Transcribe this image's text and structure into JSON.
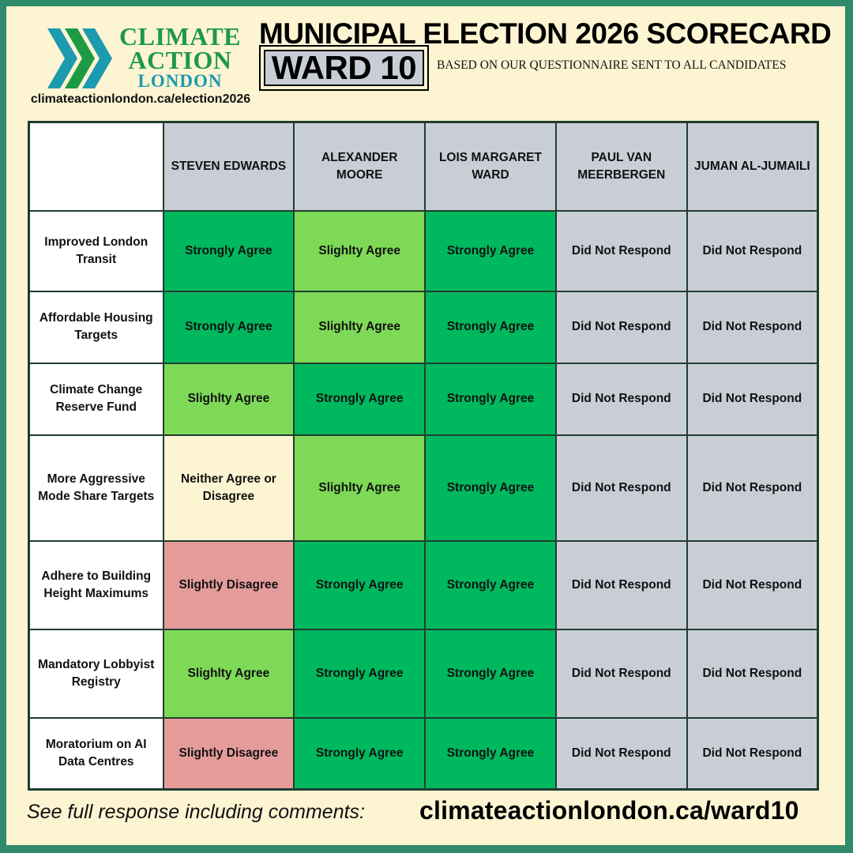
{
  "logo": {
    "line1": "CLIMATE",
    "line2": "ACTION",
    "line3": "LONDON",
    "icon": "chevrons-right-icon",
    "colors": {
      "green": "#1e9a47",
      "teal": "#1c9ab0"
    }
  },
  "header": {
    "website": "climateactionlondon.ca/election2026",
    "title": "MUNICIPAL ELECTION 2026 SCORECARD",
    "ward": "WARD 10",
    "subtitle": "BASED ON OUR QUESTIONNAIRE SENT TO ALL CANDIDATES"
  },
  "table": {
    "candidates": [
      "STEVEN EDWARDS",
      "ALEXANDER MOORE",
      "LOIS MARGARET WARD",
      "PAUL VAN MEERBERGEN",
      "JUMAN AL-JUMAILI"
    ],
    "rows": [
      {
        "label": "Improved London Transit",
        "responses": [
          "Strongly Agree",
          "Slighlty Agree",
          "Strongly Agree",
          "Did Not Respond",
          "Did Not Respond"
        ]
      },
      {
        "label": "Affordable Housing Targets",
        "responses": [
          "Strongly Agree",
          "Slighlty Agree",
          "Strongly Agree",
          "Did Not Respond",
          "Did Not Respond"
        ]
      },
      {
        "label": "Climate Change Reserve Fund",
        "responses": [
          "Slighlty Agree",
          "Strongly Agree",
          "Strongly Agree",
          "Did Not Respond",
          "Did Not Respond"
        ]
      },
      {
        "label": "More Aggressive Mode Share Targets",
        "responses": [
          "Neither Agree or Disagree",
          "Slighlty Agree",
          "Strongly Agree",
          "Did Not Respond",
          "Did Not Respond"
        ]
      },
      {
        "label": "Adhere to Building Height Maximums",
        "responses": [
          "Slightly Disagree",
          "Strongly Agree",
          "Strongly Agree",
          "Did Not Respond",
          "Did Not Respond"
        ]
      },
      {
        "label": "Mandatory Lobbyist Registry",
        "responses": [
          "Slighlty Agree",
          "Strongly Agree",
          "Strongly Agree",
          "Did Not Respond",
          "Did Not Respond"
        ]
      },
      {
        "label": "Moratorium on AI Data Centres",
        "responses": [
          "Slightly Disagree",
          "Strongly Agree",
          "Strongly Agree",
          "Did Not Respond",
          "Did Not Respond"
        ]
      }
    ],
    "colors": {
      "strongly_agree": "#00b85e",
      "slightly_agree": "#7ed957",
      "neither": "#fdf4d2",
      "slightly_disagree": "#e69b9b",
      "did_not_respond": "#c9ced6"
    }
  },
  "footer": {
    "note": "See full response including comments:",
    "link": "climateactionlondon.ca/ward10"
  }
}
